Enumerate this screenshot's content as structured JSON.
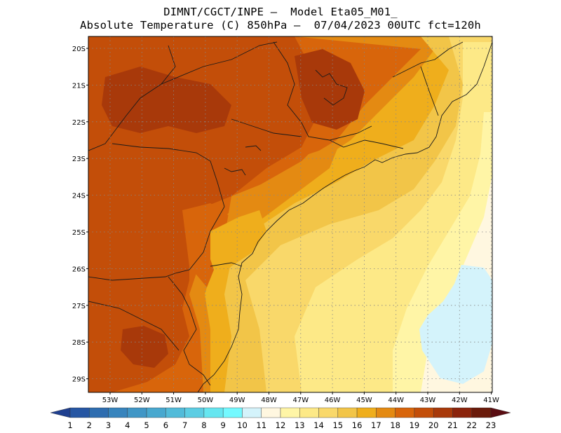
{
  "title_line1": "DIMNT/CGCT/INPE –  Model Eta05_M01_",
  "title_line2": "Absolute Temperature (C) 850hPa –  07/04/2023 00UTC fct=120h",
  "latitude_labels": [
    "20S",
    "21S",
    "22S",
    "23S",
    "24S",
    "25S",
    "26S",
    "27S",
    "28S",
    "29S"
  ],
  "longitude_labels": [
    "53W",
    "52W",
    "51W",
    "50W",
    "49W",
    "48W",
    "47W",
    "46W",
    "45W",
    "44W",
    "43W",
    "42W",
    "41W"
  ],
  "colorbar": {
    "labels": [
      "1",
      "2",
      "3",
      "4",
      "5",
      "6",
      "7",
      "8",
      "9",
      "10",
      "11",
      "12",
      "13",
      "14",
      "15",
      "16",
      "17",
      "18",
      "19",
      "20",
      "21",
      "22",
      "23"
    ],
    "colors": [
      "#1f3f8f",
      "#2656a3",
      "#2e6db0",
      "#3784bd",
      "#4096c6",
      "#48a8cf",
      "#52bbd9",
      "#5ccde3",
      "#66e6f0",
      "#74f9ff",
      "#d4f3fb",
      "#fff7e0",
      "#fff5a6",
      "#fde987",
      "#f9d86a",
      "#f2c548",
      "#efae1c",
      "#e48a12",
      "#d8650b",
      "#c34e09",
      "#a8390a",
      "#8b230b",
      "#6a1a0a",
      "#5a0d12"
    ]
  },
  "colors": {
    "dark_brown": "#a8390a",
    "orange_brown": "#c34e09",
    "orange": "#d8650b",
    "amber": "#e48a12",
    "gold": "#efae1c",
    "yellow_dark": "#f2c548",
    "yellow": "#f9d86a",
    "yellow_light": "#fde987",
    "pale_yellow": "#fff5a6",
    "cream": "#fff7e0",
    "light_blue": "#d4f3fb"
  }
}
